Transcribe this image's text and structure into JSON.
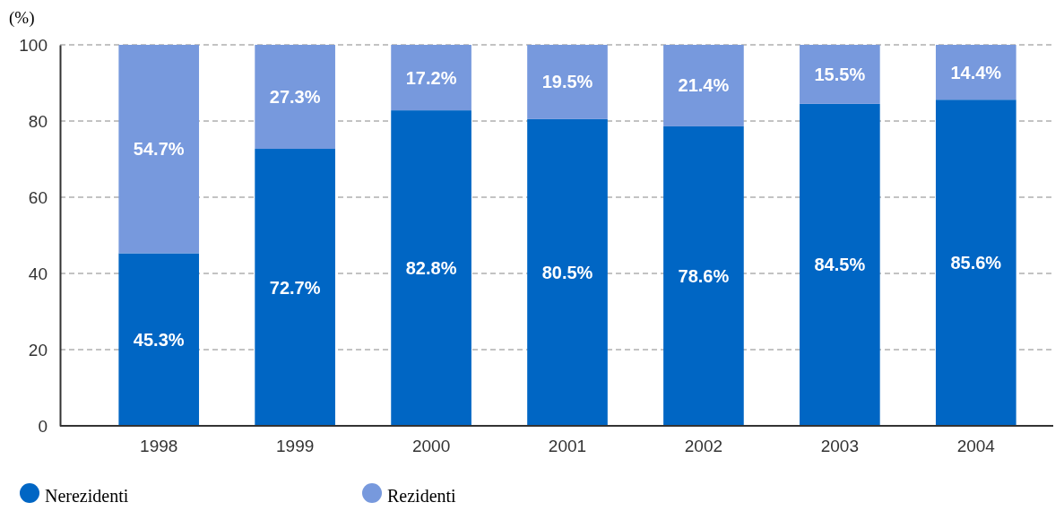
{
  "chart_data": {
    "type": "bar",
    "ylabel": "(%)",
    "categories": [
      "1998",
      "1999",
      "2000",
      "2001",
      "2002",
      "2003",
      "2004"
    ],
    "stacked": true,
    "ylim": [
      0,
      100
    ],
    "yticks": [
      0,
      20,
      40,
      60,
      80,
      100
    ],
    "grid": "y",
    "legend": "bottom left",
    "series": [
      {
        "name": "Nerezidenti",
        "color": "#0066c4",
        "values": [
          45.3,
          72.7,
          82.8,
          80.5,
          78.6,
          84.5,
          85.6
        ],
        "value_labels": [
          "45.3%",
          "72.7%",
          "82.8%",
          "80.5%",
          "78.6%",
          "84.5%",
          "85.6%"
        ]
      },
      {
        "name": "Rezidenti",
        "color": "#7799dd",
        "values": [
          54.7,
          27.3,
          17.2,
          19.5,
          21.4,
          15.5,
          14.4
        ],
        "value_labels": [
          "54.7%",
          "27.3%",
          "17.2%",
          "19.5%",
          "21.4%",
          "15.5%",
          "14.4%"
        ]
      }
    ]
  }
}
